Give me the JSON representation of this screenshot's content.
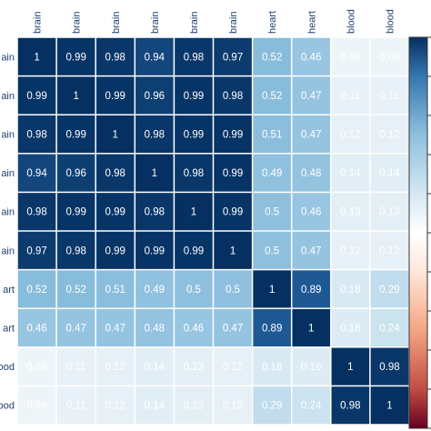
{
  "chart_data": {
    "type": "heatmap",
    "title": "",
    "columns": [
      "brain",
      "brain",
      "brain",
      "brain",
      "brain",
      "brain",
      "heart",
      "heart",
      "blood",
      "blood"
    ],
    "rows": [
      "ain",
      "ain",
      "ain",
      "ain",
      "ain",
      "ain",
      "art",
      "art",
      "ood",
      "ood"
    ],
    "values": [
      [
        1,
        0.99,
        0.98,
        0.94,
        0.98,
        0.97,
        0.52,
        0.46,
        0.08,
        0.08
      ],
      [
        0.99,
        1,
        0.99,
        0.96,
        0.99,
        0.98,
        0.52,
        0.47,
        0.11,
        0.11
      ],
      [
        0.98,
        0.99,
        1,
        0.98,
        0.99,
        0.99,
        0.51,
        0.47,
        0.12,
        0.12
      ],
      [
        0.94,
        0.96,
        0.98,
        1,
        0.98,
        0.99,
        0.49,
        0.48,
        0.14,
        0.14
      ],
      [
        0.98,
        0.99,
        0.99,
        0.98,
        1,
        0.99,
        0.5,
        0.46,
        0.13,
        0.13
      ],
      [
        0.97,
        0.98,
        0.99,
        0.99,
        0.99,
        1,
        0.5,
        0.47,
        0.12,
        0.12
      ],
      [
        0.52,
        0.52,
        0.51,
        0.49,
        0.5,
        0.5,
        1,
        0.89,
        0.18,
        0.29
      ],
      [
        0.46,
        0.47,
        0.47,
        0.48,
        0.46,
        0.47,
        0.89,
        1,
        0.16,
        0.24
      ],
      [
        0.08,
        0.11,
        0.12,
        0.14,
        0.13,
        0.12,
        0.18,
        0.16,
        1,
        0.98
      ],
      [
        0.08,
        0.11,
        0.12,
        0.14,
        0.13,
        0.12,
        0.29,
        0.24,
        0.98,
        1
      ]
    ],
    "value_range": [
      -1,
      1
    ],
    "colormap": {
      "negative": "#67001f",
      "zero": "#ffffff",
      "positive": "#053061"
    },
    "label_color": "#1f3f6f",
    "colorbar": {
      "position": "right",
      "frame_color": "#333333"
    }
  }
}
